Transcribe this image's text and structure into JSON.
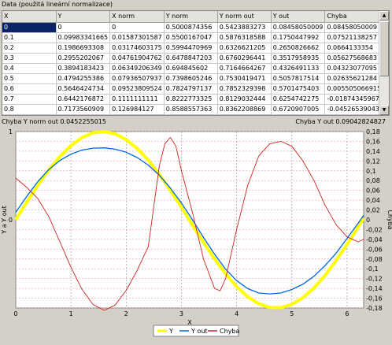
{
  "group_title": "Data (použitá lineární normalizace)",
  "table": {
    "columns": [
      "X",
      "Y",
      "X norm",
      "Y norm",
      "Y norm out",
      "Y out",
      "Chyba"
    ],
    "rows": [
      [
        "0",
        "0",
        "0",
        "0.5000874356",
        "0.5423883273",
        "0.08458050009",
        "0.08458050009"
      ],
      [
        "0.1",
        "0.09983341665",
        "0.01587301587",
        "0.5500167047",
        "0.5876318588",
        "0.1750447992",
        "0.07521138257"
      ],
      [
        "0.2",
        "0.1986693308",
        "0.03174603175",
        "0.5994470969",
        "0.6326621205",
        "0.2650826662",
        "0.0664133354"
      ],
      [
        "0.3",
        "0.2955202067",
        "0.04761904762",
        "0.6478847203",
        "0.6760296441",
        "0.3517958935",
        "0.05627568683"
      ],
      [
        "0.4",
        "0.3894183423",
        "0.06349206349",
        "0.694845602",
        "0.7164664267",
        "0.4326491133",
        "0.04323077095"
      ],
      [
        "0.5",
        "0.4794255386",
        "0.07936507937",
        "0.7398605246",
        "0.7530419471",
        "0.5057817514",
        "0.02635621284"
      ],
      [
        "0.6",
        "0.5646424734",
        "0.09523809524",
        "0.7824797137",
        "0.7852329398",
        "0.5701475403",
        "0.005505066915"
      ],
      [
        "0.7",
        "0.6442176872",
        "0.1111111111",
        "0.8222773325",
        "0.8129032444",
        "0.6254742275",
        "-0.01874345967"
      ],
      [
        "0.8",
        "0.7173560909",
        "0.126984127",
        "0.8588557363",
        "0.8362208869",
        "0.6720907005",
        "-0.04526539043"
      ]
    ]
  },
  "error_norm_label": "Chyba Y norm out 0.0452255015",
  "error_label": "Chyba Y out 0.09042824827",
  "chart_data": {
    "type": "line",
    "xlabel": "X",
    "ylabel": "Y a Y out",
    "y2label": "Chyba",
    "xlim": [
      0,
      6.3
    ],
    "ylim": [
      -1,
      1
    ],
    "y2lim": [
      -0.18,
      0.18
    ],
    "x_ticks": [
      "0",
      "1",
      "2",
      "3",
      "4",
      "5",
      "6"
    ],
    "y_ticks": [
      "0",
      "1"
    ],
    "y2_ticks": [
      "0,18",
      "0,16",
      "0,14",
      "0,12",
      "0,1",
      "0,08",
      "0,06",
      "0,04",
      "0,02",
      "0",
      "-0,02",
      "-0,04",
      "-0,06",
      "-0,08",
      "-0,1",
      "-0,12",
      "-0,14",
      "-0,16",
      "-0,18"
    ],
    "grid": true,
    "legend_position": "bottom",
    "series": [
      {
        "name": "Y",
        "color": "#ffff00",
        "axis": "left",
        "x": [
          0,
          0.2,
          0.4,
          0.6,
          0.8,
          1.0,
          1.2,
          1.4,
          1.6,
          1.8,
          2.0,
          2.2,
          2.4,
          2.6,
          2.8,
          3.0,
          3.2,
          3.4,
          3.6,
          3.8,
          4.0,
          4.2,
          4.4,
          4.6,
          4.8,
          5.0,
          5.2,
          5.4,
          5.6,
          5.8,
          6.0,
          6.2,
          6.3
        ],
        "y": [
          0,
          0.199,
          0.389,
          0.565,
          0.717,
          0.841,
          0.932,
          0.985,
          1.0,
          0.974,
          0.909,
          0.808,
          0.675,
          0.516,
          0.335,
          0.141,
          -0.058,
          -0.256,
          -0.443,
          -0.612,
          -0.757,
          -0.872,
          -0.952,
          -0.994,
          -0.996,
          -0.959,
          -0.883,
          -0.773,
          -0.631,
          -0.465,
          -0.279,
          -0.083,
          0.017
        ]
      },
      {
        "name": "Y out",
        "color": "#0066dd",
        "axis": "left",
        "x": [
          0,
          0.2,
          0.4,
          0.6,
          0.8,
          1.0,
          1.2,
          1.4,
          1.6,
          1.8,
          2.0,
          2.2,
          2.4,
          2.6,
          2.8,
          3.0,
          3.2,
          3.4,
          3.6,
          3.8,
          4.0,
          4.2,
          4.4,
          4.6,
          4.8,
          5.0,
          5.2,
          5.4,
          5.6,
          5.8,
          6.0,
          6.2,
          6.3
        ],
        "y": [
          0.085,
          0.265,
          0.433,
          0.57,
          0.672,
          0.744,
          0.79,
          0.812,
          0.815,
          0.8,
          0.765,
          0.705,
          0.62,
          0.505,
          0.36,
          0.19,
          0.0,
          -0.2,
          -0.39,
          -0.56,
          -0.69,
          -0.78,
          -0.83,
          -0.84,
          -0.83,
          -0.79,
          -0.73,
          -0.64,
          -0.52,
          -0.38,
          -0.21,
          -0.04,
          0.05
        ]
      },
      {
        "name": "Chyba",
        "color": "#cc2222",
        "axis": "right",
        "x": [
          0,
          0.2,
          0.4,
          0.6,
          0.8,
          1.0,
          1.2,
          1.4,
          1.6,
          1.8,
          2.0,
          2.2,
          2.4,
          2.6,
          2.7,
          2.8,
          2.9,
          3.0,
          3.2,
          3.4,
          3.6,
          3.7,
          3.8,
          4.0,
          4.2,
          4.4,
          4.6,
          4.8,
          5.0,
          5.2,
          5.4,
          5.6,
          5.8,
          6.0,
          6.2,
          6.3
        ],
        "y": [
          0.085,
          0.066,
          0.043,
          0.006,
          -0.045,
          -0.097,
          -0.142,
          -0.173,
          -0.185,
          -0.174,
          -0.144,
          -0.103,
          -0.055,
          0.11,
          0.155,
          0.168,
          0.15,
          0.1,
          0.015,
          -0.08,
          -0.14,
          -0.145,
          -0.12,
          -0.02,
          0.07,
          0.13,
          0.155,
          0.16,
          0.15,
          0.12,
          0.08,
          0.03,
          -0.01,
          -0.035,
          -0.045,
          -0.04
        ]
      }
    ]
  }
}
